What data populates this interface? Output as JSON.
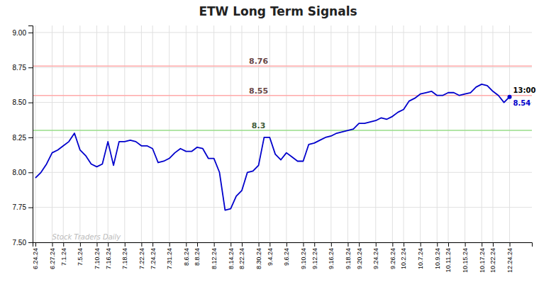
{
  "chart_data": {
    "type": "line",
    "title": "ETW Long Term Signals",
    "categories": [
      "6.24.24",
      null,
      null,
      "6.27.24",
      null,
      "7.1.24",
      null,
      null,
      "7.5.24",
      null,
      null,
      "7.10.24",
      null,
      "7.16.24",
      null,
      null,
      "7.18.24",
      null,
      null,
      "7.22.24",
      null,
      "7.24.24",
      null,
      null,
      "7.31.24",
      null,
      null,
      "8.6.24",
      null,
      "8.8.24",
      null,
      null,
      "8.12.24",
      null,
      null,
      "8.14.24",
      null,
      "8.22.24",
      null,
      null,
      "8.30.24",
      null,
      "9.4.24",
      null,
      null,
      "9.6.24",
      null,
      null,
      "9.10.24",
      null,
      "9.12.24",
      null,
      null,
      "9.16.24",
      null,
      null,
      "9.18.24",
      null,
      "9.20.24",
      null,
      null,
      "9.24.24",
      null,
      null,
      "9.26.24",
      null,
      "10.2.24",
      null,
      null,
      "10.7.24",
      null,
      null,
      "10.9.24",
      null,
      "10.11.24",
      null,
      null,
      "10.15.24",
      null,
      null,
      "10.17.24",
      null,
      "10.22.24",
      null,
      null,
      "12.24.24"
    ],
    "values": [
      7.96,
      8.0,
      8.06,
      8.14,
      8.16,
      8.19,
      8.22,
      8.28,
      8.16,
      8.12,
      8.06,
      8.04,
      8.06,
      8.22,
      8.05,
      8.22,
      8.22,
      8.23,
      8.22,
      8.19,
      8.19,
      8.17,
      8.07,
      8.08,
      8.1,
      8.14,
      8.17,
      8.15,
      8.15,
      8.18,
      8.17,
      8.1,
      8.1,
      8.0,
      7.73,
      7.74,
      7.83,
      7.87,
      8.0,
      8.01,
      8.05,
      8.25,
      8.25,
      8.13,
      8.09,
      8.14,
      8.11,
      8.08,
      8.08,
      8.2,
      8.21,
      8.23,
      8.25,
      8.26,
      8.28,
      8.29,
      8.3,
      8.31,
      8.35,
      8.35,
      8.36,
      8.37,
      8.39,
      8.38,
      8.4,
      8.43,
      8.45,
      8.51,
      8.53,
      8.56,
      8.57,
      8.58,
      8.55,
      8.55,
      8.57,
      8.57,
      8.55,
      8.56,
      8.57,
      8.61,
      8.63,
      8.62,
      8.58,
      8.55,
      8.5,
      8.54
    ],
    "color": "#0000cc",
    "ylim": [
      7.5,
      9.05
    ],
    "yticks": [
      {
        "value": 7.5,
        "label": "7.50"
      },
      {
        "value": 7.75,
        "label": "7.75"
      },
      {
        "value": 8.0,
        "label": "8.00"
      },
      {
        "value": 8.25,
        "label": "8.25"
      },
      {
        "value": 8.5,
        "label": "8.50"
      },
      {
        "value": 8.75,
        "label": "8.75"
      },
      {
        "value": 9.0,
        "label": "9.00"
      }
    ],
    "grid": true,
    "hlines": [
      {
        "value": 8.76,
        "color": "#ffaaaa"
      },
      {
        "value": 8.55,
        "color": "#ffaaaa"
      },
      {
        "value": 8.3,
        "color": "#99dd88"
      }
    ],
    "end_labels": [
      "13:00",
      "8.54"
    ],
    "watermark": "Stock Traders Daily"
  }
}
